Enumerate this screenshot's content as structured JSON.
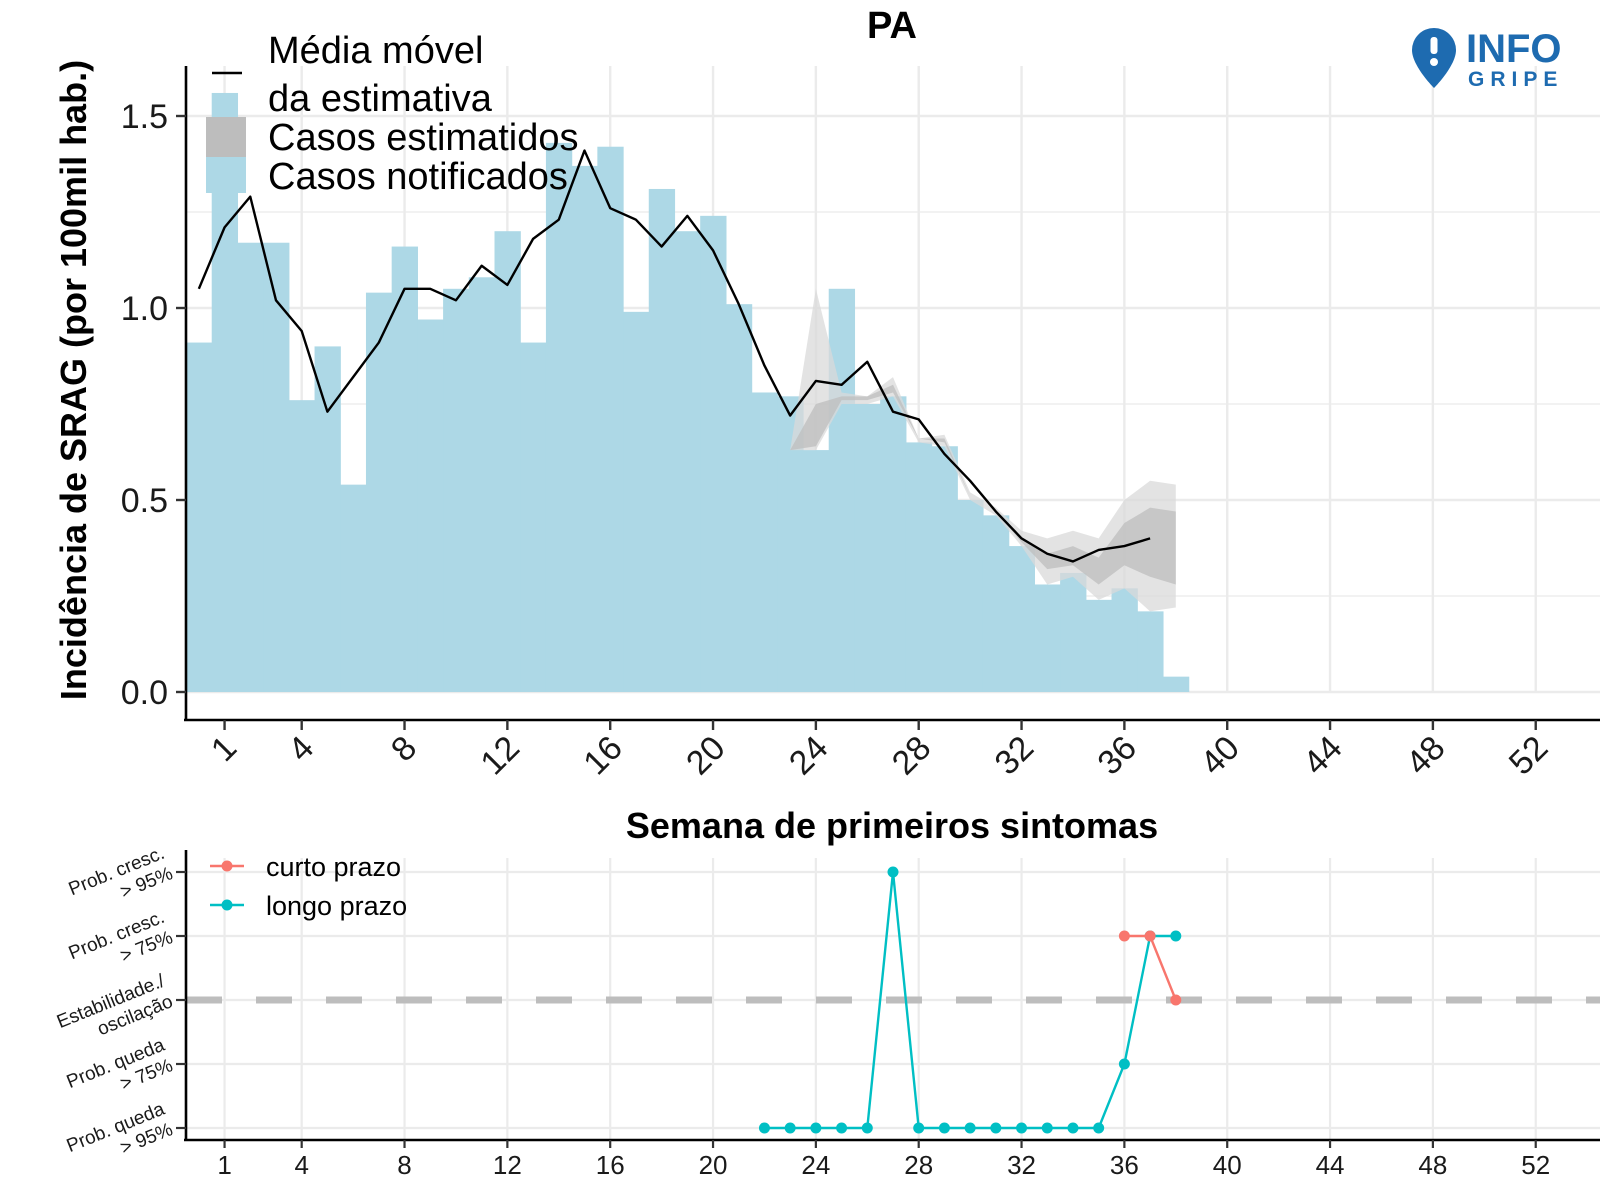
{
  "title": "PA",
  "logo": {
    "line1": "INFO",
    "line2": "GRIPE",
    "color": "#1e6bb0"
  },
  "colors": {
    "bars": "#add8e6",
    "moving_avg": "#000000",
    "band_outer": "#d9d9d9",
    "band_inner": "#bdbdbd",
    "short_term": "#f8766d",
    "long_term": "#00bfc4",
    "stability_line": "#bdbdbd",
    "grid": "#ebebeb"
  },
  "chart_data": [
    {
      "type": "bar",
      "title": "PA",
      "xlabel": "Semana de primeiros sintomas",
      "ylabel": "Incidência de SRAG (por 100mil hab.)",
      "xlim": [
        -0.5,
        54.5
      ],
      "ylim": [
        0,
        1.5
      ],
      "x_ticks": [
        1,
        4,
        8,
        12,
        16,
        20,
        24,
        28,
        32,
        36,
        40,
        44,
        48,
        52
      ],
      "y_ticks": [
        0.0,
        0.5,
        1.0,
        1.5
      ],
      "y_tick_labels": [
        "0.0",
        "0.5",
        "1.0",
        "1.5"
      ],
      "grid": true,
      "legend": {
        "placement": "top-left",
        "entries": [
          "Média móvel\nda estimativa",
          "Casos estimatidos",
          "Casos notificados"
        ],
        "line1": "Média móvel",
        "line2": "da estimativa",
        "estimated": "Casos estimatidos",
        "notified": "Casos notificados"
      },
      "x": [
        0,
        1,
        2,
        3,
        4,
        5,
        6,
        7,
        8,
        9,
        10,
        11,
        12,
        13,
        14,
        15,
        16,
        17,
        18,
        19,
        20,
        21,
        22,
        23,
        24,
        25,
        26,
        27,
        28,
        29,
        30,
        31,
        32,
        33,
        34,
        35,
        36,
        37,
        38
      ],
      "series": [
        {
          "name": "Casos notificados",
          "kind": "bars",
          "values": [
            0.91,
            1.56,
            1.17,
            1.17,
            0.76,
            0.9,
            0.54,
            1.04,
            1.16,
            0.97,
            1.05,
            1.08,
            1.2,
            0.91,
            1.43,
            1.37,
            1.42,
            0.99,
            1.31,
            1.2,
            1.24,
            1.01,
            0.78,
            0.77,
            0.63,
            1.05,
            0.75,
            0.77,
            0.65,
            0.64,
            0.5,
            0.46,
            0.38,
            0.28,
            0.31,
            0.24,
            0.27,
            0.21,
            0.04
          ]
        },
        {
          "name": "Casos estimatidos",
          "kind": "band",
          "x": [
            23,
            24,
            25,
            26,
            27,
            28,
            29,
            30,
            31,
            32,
            33,
            34,
            35,
            36,
            37,
            38
          ],
          "outer_low": [
            0.63,
            0.63,
            0.75,
            0.75,
            0.77,
            0.65,
            0.64,
            0.5,
            0.46,
            0.38,
            0.28,
            0.3,
            0.24,
            0.27,
            0.21,
            0.22
          ],
          "outer_high": [
            0.63,
            1.05,
            0.78,
            0.77,
            0.82,
            0.66,
            0.67,
            0.52,
            0.48,
            0.42,
            0.4,
            0.42,
            0.4,
            0.5,
            0.55,
            0.54
          ],
          "inner_low": [
            0.63,
            0.64,
            0.76,
            0.76,
            0.78,
            0.66,
            0.65,
            0.51,
            0.47,
            0.39,
            0.32,
            0.33,
            0.28,
            0.33,
            0.3,
            0.28
          ],
          "inner_high": [
            0.63,
            0.75,
            0.77,
            0.77,
            0.8,
            0.66,
            0.66,
            0.51,
            0.47,
            0.4,
            0.36,
            0.38,
            0.35,
            0.44,
            0.48,
            0.47
          ]
        },
        {
          "name": "Média móvel da estimativa",
          "kind": "line",
          "x": [
            0,
            1,
            2,
            3,
            4,
            5,
            6,
            7,
            8,
            9,
            10,
            11,
            12,
            13,
            14,
            15,
            16,
            17,
            18,
            19,
            20,
            21,
            22,
            23,
            24,
            25,
            26,
            27,
            28,
            29,
            30,
            31,
            32,
            33,
            34,
            35,
            36,
            37
          ],
          "values": [
            1.05,
            1.21,
            1.29,
            1.02,
            0.94,
            0.73,
            0.82,
            0.91,
            1.05,
            1.05,
            1.02,
            1.11,
            1.06,
            1.18,
            1.23,
            1.41,
            1.26,
            1.23,
            1.16,
            1.24,
            1.15,
            1.01,
            0.85,
            0.72,
            0.81,
            0.8,
            0.86,
            0.73,
            0.71,
            0.62,
            0.55,
            0.47,
            0.4,
            0.36,
            0.34,
            0.37,
            0.38,
            0.4
          ]
        }
      ]
    },
    {
      "type": "line",
      "x_ticks": [
        1,
        4,
        8,
        12,
        16,
        20,
        24,
        28,
        32,
        36,
        40,
        44,
        48,
        52
      ],
      "xlim": [
        -0.5,
        54.5
      ],
      "y_levels": [
        [
          "Prob. queda",
          "> 95%"
        ],
        [
          "Prob. queda",
          "> 75%"
        ],
        [
          "Estabilidade./",
          "oscilação"
        ],
        [
          "Prob. cresc.",
          "> 75%"
        ],
        [
          "Prob. cresc.",
          "> 95%"
        ]
      ],
      "reference_level": "Estabilidade./ oscilação",
      "grid": true,
      "legend": {
        "placement": "top-left",
        "entries": [
          "curto prazo",
          "longo prazo"
        ]
      },
      "series": [
        {
          "name": "curto prazo",
          "x": [
            36,
            37,
            38
          ],
          "values": [
            1,
            1,
            0
          ]
        },
        {
          "name": "longo prazo",
          "x": [
            22,
            23,
            24,
            25,
            26,
            27,
            28,
            29,
            30,
            31,
            32,
            33,
            34,
            35,
            36,
            37,
            38
          ],
          "values": [
            -2,
            -2,
            -2,
            -2,
            -2,
            2,
            -2,
            -2,
            -2,
            -2,
            -2,
            -2,
            -2,
            -2,
            -1,
            1,
            1
          ]
        }
      ]
    }
  ]
}
